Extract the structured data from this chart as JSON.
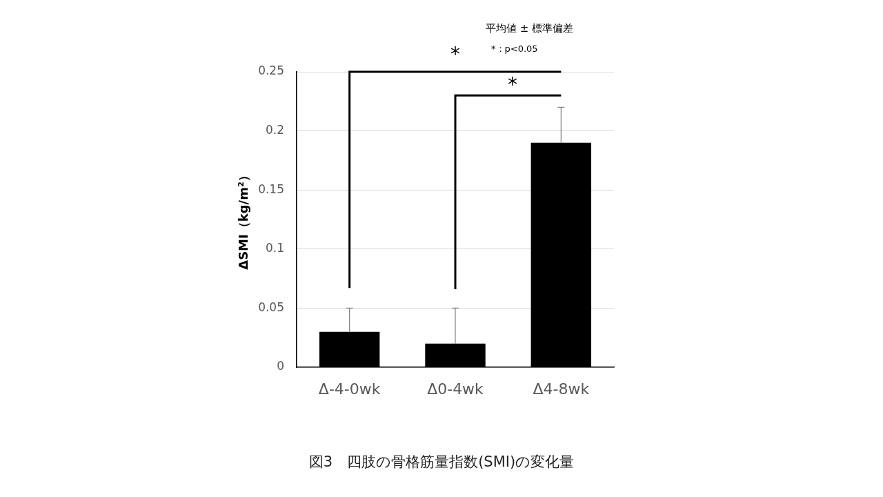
{
  "chart_data": {
    "type": "bar",
    "title": "図3　四肢の骨格筋量指数(SMI)の変化量",
    "ylabel": "ΔSMI（kg/m²）",
    "categories": [
      "Δ-4-0wk",
      "Δ0-4wk",
      "Δ4-8wk"
    ],
    "values": [
      0.03,
      0.02,
      0.19
    ],
    "errors": [
      [
        0.03,
        0.05
      ],
      [
        0.02,
        0.05
      ],
      [
        0.19,
        0.22
      ]
    ],
    "color": "#000000",
    "ylim": [
      0,
      0.25
    ],
    "yticks": [
      0,
      0.05,
      0.1,
      0.15,
      0.2,
      0.25
    ],
    "grid": "y",
    "legend": false,
    "annotations": [
      "平均値 ± 標準偏差",
      "*：p<0.05",
      "*",
      "*"
    ]
  }
}
